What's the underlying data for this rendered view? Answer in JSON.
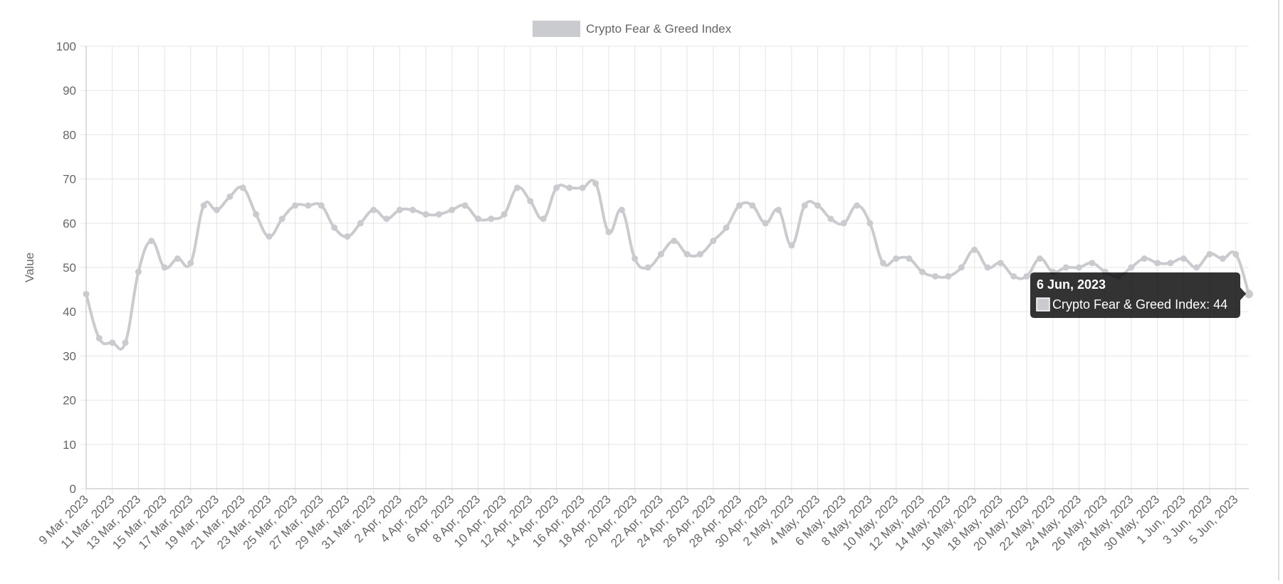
{
  "chart_data": {
    "type": "line",
    "y_label": "Value",
    "categories": [
      "9 Mar, 2023",
      null,
      "11 Mar, 2023",
      null,
      "13 Mar, 2023",
      null,
      "15 Mar, 2023",
      null,
      "17 Mar, 2023",
      null,
      "19 Mar, 2023",
      null,
      "21 Mar, 2023",
      null,
      "23 Mar, 2023",
      null,
      "25 Mar, 2023",
      null,
      "27 Mar, 2023",
      null,
      "29 Mar, 2023",
      null,
      "31 Mar, 2023",
      null,
      "2 Apr, 2023",
      null,
      "4 Apr, 2023",
      null,
      "6 Apr, 2023",
      null,
      "8 Apr, 2023",
      null,
      "10 Apr, 2023",
      null,
      "12 Apr, 2023",
      null,
      "14 Apr, 2023",
      null,
      "16 Apr, 2023",
      null,
      "18 Apr, 2023",
      null,
      "20 Apr, 2023",
      null,
      "22 Apr, 2023",
      null,
      "24 Apr, 2023",
      null,
      "26 Apr, 2023",
      null,
      "28 Apr, 2023",
      null,
      "30 Apr, 2023",
      null,
      "2 May, 2023",
      null,
      "4 May, 2023",
      null,
      "6 May, 2023",
      null,
      "8 May, 2023",
      null,
      "10 May, 2023",
      null,
      "12 May, 2023",
      null,
      "14 May, 2023",
      null,
      "16 May, 2023",
      null,
      "18 May, 2023",
      null,
      "20 May, 2023",
      null,
      "22 May, 2023",
      null,
      "24 May, 2023",
      null,
      "26 May, 2023",
      null,
      "28 May, 2023",
      null,
      "30 May, 2023",
      null,
      "1 Jun, 2023",
      null,
      "3 Jun, 2023",
      null,
      "5 Jun, 2023",
      null
    ],
    "series": [
      {
        "name": "Crypto Fear & Greed Index",
        "color": "#c9cbcf",
        "values": [
          44,
          34,
          33,
          33,
          49,
          56,
          50,
          52,
          51,
          64,
          63,
          66,
          68,
          62,
          57,
          61,
          64,
          64,
          64,
          59,
          57,
          60,
          63,
          61,
          63,
          63,
          62,
          62,
          63,
          64,
          61,
          61,
          62,
          68,
          65,
          61,
          68,
          68,
          68,
          69,
          58,
          63,
          52,
          50,
          53,
          56,
          53,
          53,
          56,
          59,
          64,
          64,
          60,
          63,
          55,
          64,
          64,
          61,
          60,
          64,
          60,
          51,
          52,
          52,
          49,
          48,
          48,
          50,
          54,
          50,
          51,
          48,
          48,
          52,
          49,
          50,
          50,
          51,
          49,
          48,
          50,
          52,
          51,
          51,
          52,
          50,
          53,
          52,
          53,
          44
        ]
      }
    ],
    "ylim": [
      0,
      100
    ],
    "yticks": [
      0,
      10,
      20,
      30,
      40,
      50,
      60,
      70,
      80,
      90,
      100
    ],
    "grid": true,
    "legend": "top",
    "tooltip": {
      "title": "6 Jun, 2023",
      "label": "Crypto Fear & Greed Index: 44"
    }
  }
}
